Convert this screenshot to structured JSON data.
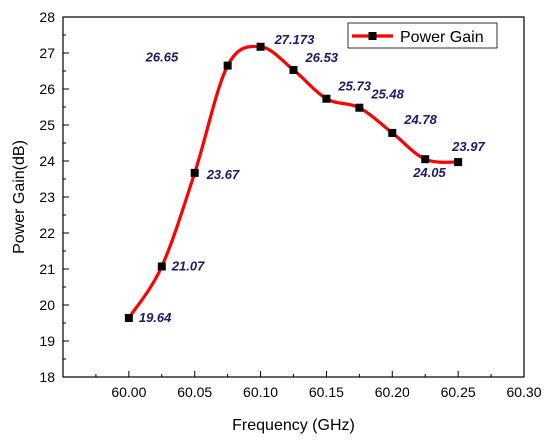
{
  "chart_data": {
    "type": "line",
    "xlabel": "Frequency (GHz)",
    "ylabel": "Power Gain(dB)",
    "xlim": [
      59.95,
      60.3
    ],
    "ylim": [
      18,
      28
    ],
    "x_ticks": [
      "60.00",
      "60.05",
      "60.10",
      "60.15",
      "60.20",
      "60.25",
      "60.30"
    ],
    "y_ticks": [
      "18",
      "19",
      "20",
      "21",
      "22",
      "23",
      "24",
      "25",
      "26",
      "27",
      "28"
    ],
    "grid": false,
    "legend_position": "top-right",
    "series": [
      {
        "name": "Power Gain",
        "color": "#ff0000",
        "marker_color": "#000000",
        "x": [
          60.0,
          60.025,
          60.05,
          60.075,
          60.1,
          60.125,
          60.15,
          60.175,
          60.2,
          60.225,
          60.25
        ],
        "values": [
          19.64,
          21.07,
          23.67,
          26.65,
          27.173,
          26.53,
          25.73,
          25.48,
          24.78,
          24.05,
          23.97
        ],
        "labels": [
          "19.64",
          "21.07",
          "23.67",
          "26.65",
          "27.173",
          "26.53",
          "25.73",
          "25.48",
          "24.78",
          "24.05",
          "23.97"
        ]
      }
    ],
    "label_color": "#1a1a6e"
  }
}
